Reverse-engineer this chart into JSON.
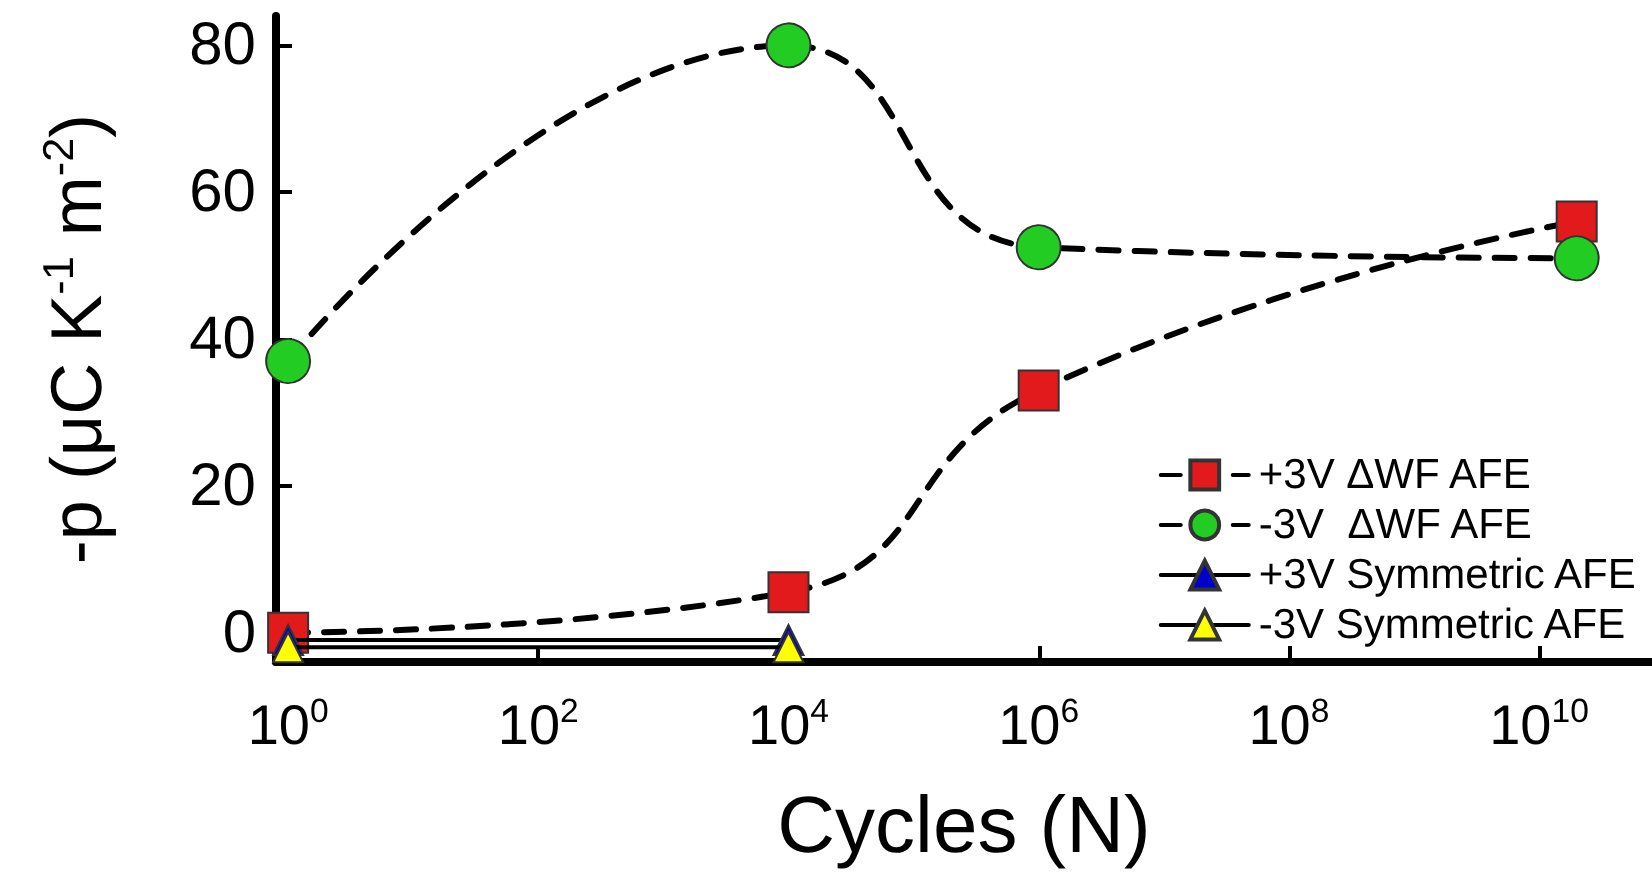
{
  "chart_data": {
    "type": "line",
    "xlabel": "Cycles (N)",
    "ylabel": "-p (μC K$^{-1}$ m$^{-2}$)",
    "x": [
      1,
      10000,
      1000000,
      20000000000
    ],
    "series": [
      {
        "name": "+3V ΔWF AFE",
        "color": "#e31a1c",
        "marker": "square",
        "line_style": "dashed",
        "values": [
          0,
          5.5,
          33,
          56
        ]
      },
      {
        "name": "-3V  ΔWF AFE",
        "color": "#22cc22",
        "marker": "circle",
        "line_style": "dashed",
        "values": [
          37,
          80,
          52.5,
          51
        ]
      },
      {
        "name": "+3V Symmetric AFE",
        "color": "#0000cc",
        "marker": "triangle",
        "line_style": "solid",
        "values": [
          -1,
          -1,
          null,
          null
        ]
      },
      {
        "name": "-3V Symmetric AFE",
        "color": "#ffff00",
        "marker": "triangle",
        "line_style": "solid",
        "values": [
          -2,
          -2,
          null,
          null
        ]
      }
    ],
    "log": "x",
    "xlim": [
      0.8,
      80000000000
    ],
    "ylim": [
      -4,
      84
    ],
    "xticks": [
      {
        "value": 1,
        "label": "10$^{0}$"
      },
      {
        "value": 100,
        "label": "10$^{2}$"
      },
      {
        "value": 10000,
        "label": "10$^{4}$"
      },
      {
        "value": 1000000,
        "label": "10$^{6}$"
      },
      {
        "value": 100000000,
        "label": "10$^{8}$"
      },
      {
        "value": 10000000000,
        "label": "10$^{10}$"
      }
    ],
    "yticks": [
      0,
      20,
      40,
      60,
      80
    ],
    "grid": false,
    "legend": "bottom right"
  }
}
